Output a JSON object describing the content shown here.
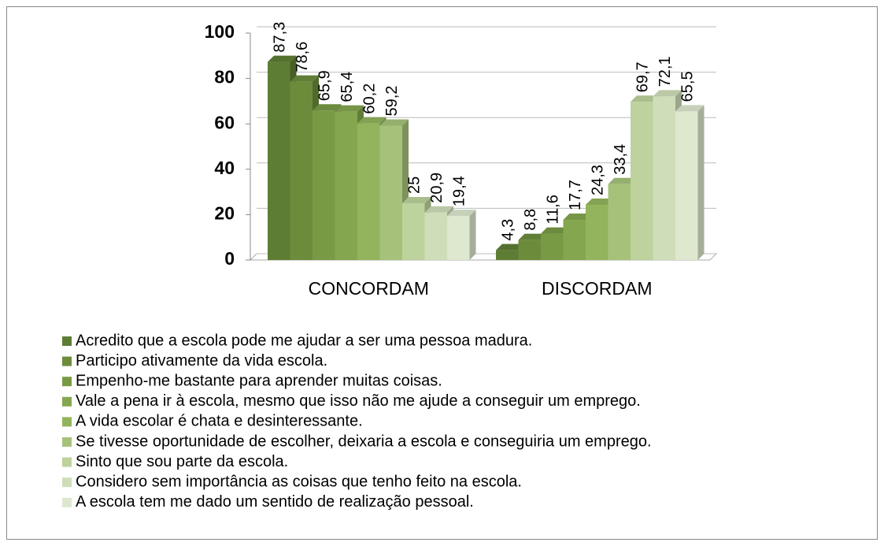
{
  "chart_data": {
    "type": "bar",
    "categories": [
      "CONCORDAM",
      "DISCORDAM"
    ],
    "ylim": [
      0,
      100
    ],
    "yticks": [
      0,
      20,
      40,
      60,
      80,
      100
    ],
    "grid": true,
    "legend": "bottom",
    "series": [
      {
        "name": "Acredito que a escola pode me ajudar a ser uma pessoa madura.",
        "color": "#5e7d34",
        "values": [
          87.3,
          4.3
        ],
        "value_labels": [
          "87,3",
          "4,3"
        ]
      },
      {
        "name": "Participo ativamente da vida escola.",
        "color": "#6c8c3c",
        "values": [
          78.6,
          8.8
        ],
        "value_labels": [
          "78,6",
          "8,8"
        ]
      },
      {
        "name": "Empenho-me bastante para aprender muitas coisas.",
        "color": "#789a45",
        "values": [
          65.9,
          11.6
        ],
        "value_labels": [
          "65,9",
          "11,6"
        ]
      },
      {
        "name": "Vale a pena ir à escola, mesmo que isso não me ajude a conseguir um emprego.",
        "color": "#84a64e",
        "values": [
          65.4,
          17.7
        ],
        "value_labels": [
          "65,4",
          "17,7"
        ]
      },
      {
        "name": "A vida escolar é chata e desinteressante.",
        "color": "#93b45c",
        "values": [
          60.2,
          24.3
        ],
        "value_labels": [
          "60,2",
          "24,3"
        ]
      },
      {
        "name": "Se tivesse oportunidade de escolher, deixaria a escola e conseguiria um emprego.",
        "color": "#a6c27a",
        "values": [
          59.2,
          33.4
        ],
        "value_labels": [
          "59,2",
          "33,4"
        ]
      },
      {
        "name": "Sinto que sou parte da escola.",
        "color": "#bdd29c",
        "values": [
          25,
          69.7
        ],
        "value_labels": [
          "25",
          "69,7"
        ]
      },
      {
        "name": "Considero sem importância as coisas que tenho feito na escola.",
        "color": "#cfdeb9",
        "values": [
          20.9,
          72.1
        ],
        "value_labels": [
          "20,9",
          "72,1"
        ]
      },
      {
        "name": "A escola tem me dado um sentido de realização pessoal.",
        "color": "#dde8cf",
        "values": [
          19.4,
          65.5
        ],
        "value_labels": [
          "19,4",
          "65,5"
        ]
      }
    ]
  }
}
